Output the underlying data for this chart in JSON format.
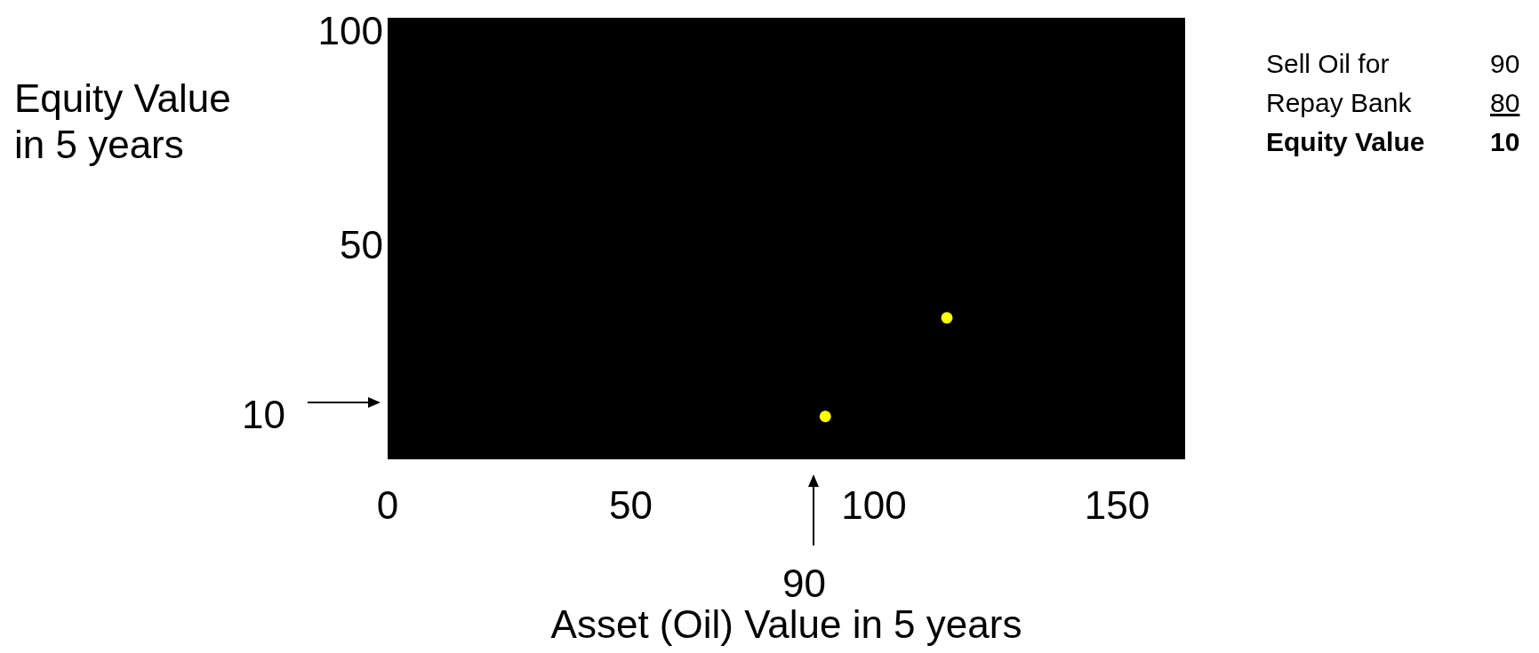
{
  "chart_data": {
    "type": "scatter",
    "xlabel": "Asset (Oil) Value in 5 years",
    "ylabel": "Equity Value in 5 years",
    "x": [
      90,
      115
    ],
    "series": [
      {
        "color": "#ffff00",
        "values": [
          10,
          33
        ]
      }
    ],
    "xlim": [
      0,
      164
    ],
    "xticks": [
      0,
      50,
      100,
      150
    ],
    "ylim": [
      0,
      103
    ],
    "yticks": [
      50,
      100
    ],
    "grid": false,
    "marker": "circle",
    "annotations": [
      "10",
      "90",
      "Sell Oil for",
      "90",
      "Repay Bank",
      "80",
      "Equity Value",
      "10"
    ]
  }
}
